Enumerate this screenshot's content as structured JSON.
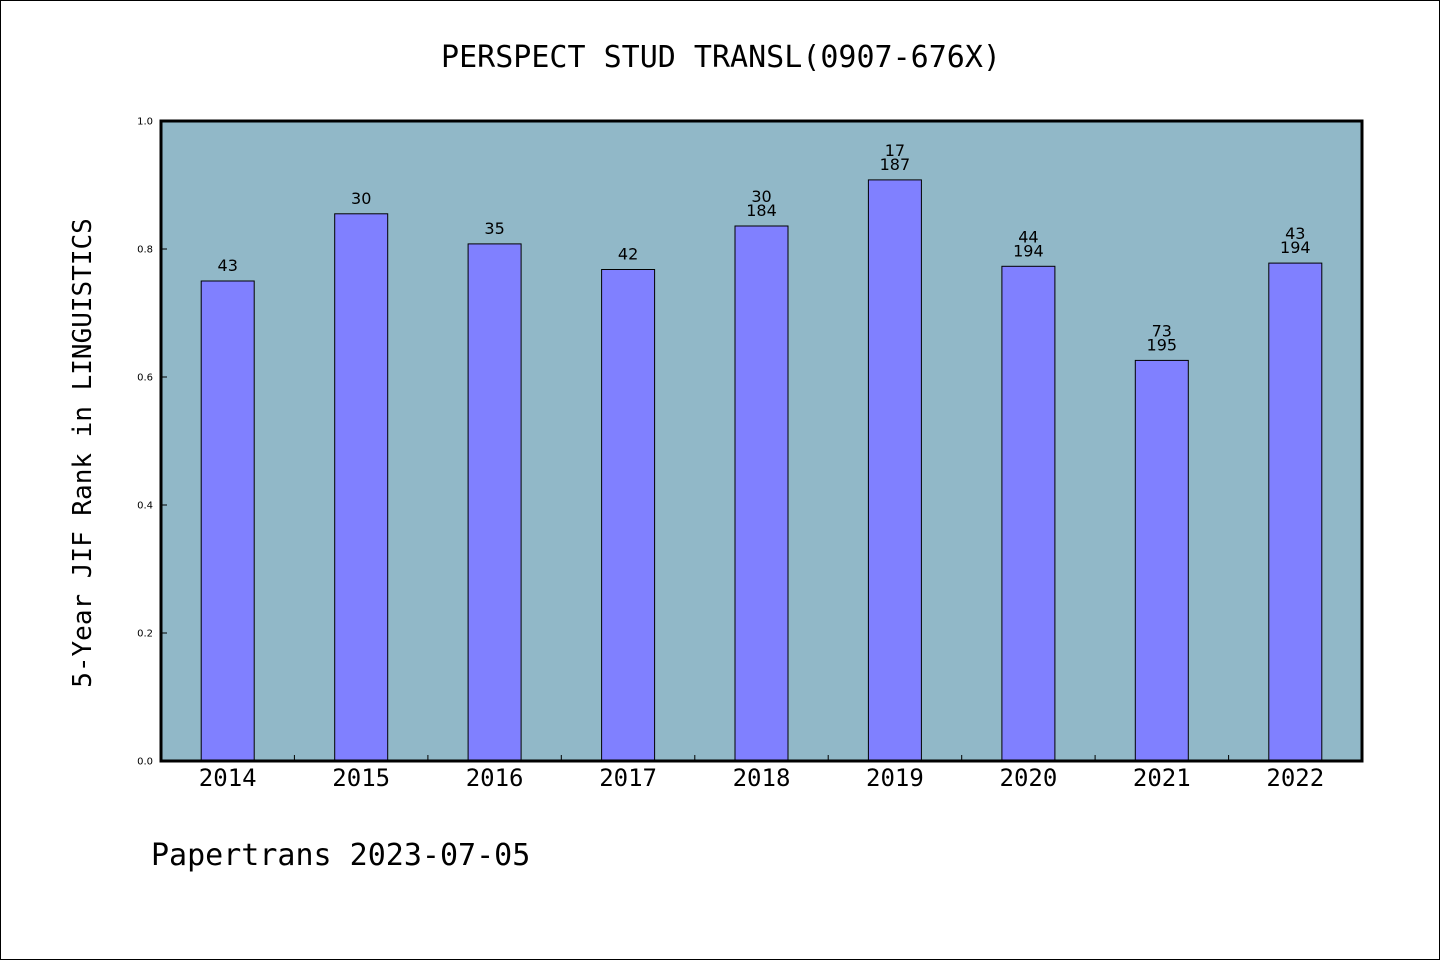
{
  "chart_data": {
    "type": "bar",
    "title": "PERSPECT STUD TRANSL(0907-676X)",
    "xlabel": "",
    "ylabel": "5-Year JIF Rank in LINGUISTICS",
    "ylim": [
      0,
      1.0
    ],
    "yticks": [
      "0.0",
      "0.2",
      "0.4",
      "0.6",
      "0.8",
      "1.0"
    ],
    "categories": [
      "2014",
      "2015",
      "2016",
      "2017",
      "2018",
      "2019",
      "2020",
      "2021",
      "2022"
    ],
    "values": [
      0.75,
      0.855,
      0.808,
      0.768,
      0.836,
      0.908,
      0.773,
      0.626,
      0.778
    ],
    "bar_labels": [
      [
        "43"
      ],
      [
        "30"
      ],
      [
        "35"
      ],
      [
        "42"
      ],
      [
        "30",
        "184"
      ],
      [
        "17",
        "187"
      ],
      [
        "44",
        "194"
      ],
      [
        "73",
        "195"
      ],
      [
        "43",
        "194"
      ]
    ],
    "grid": false,
    "legend": "none",
    "colors": {
      "bar": "#8080ff",
      "plot_background": "#91b8c8",
      "axis": "#000000"
    }
  },
  "footer": "Papertrans 2023-07-05"
}
